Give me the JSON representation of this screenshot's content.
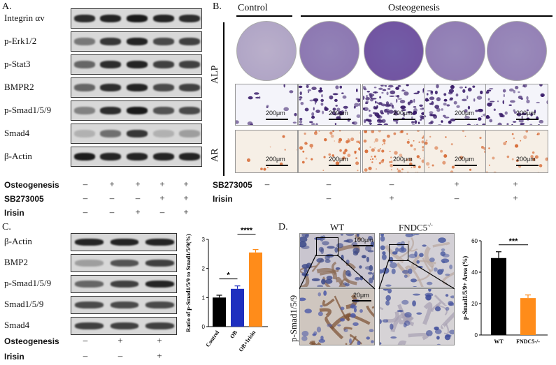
{
  "panelA": {
    "letter": "A.",
    "blots": [
      "Integrin αv",
      "p-Erk1/2",
      "p-Stat3",
      "BMPR2",
      "p-Smad1/5/9",
      "Smad4",
      "β-Actin"
    ],
    "band_intensity": [
      [
        0.9,
        0.95,
        1,
        0.95,
        0.9
      ],
      [
        0.5,
        0.85,
        0.95,
        0.75,
        0.8
      ],
      [
        0.6,
        0.9,
        0.95,
        0.8,
        0.8
      ],
      [
        0.6,
        0.9,
        0.95,
        0.75,
        0.8
      ],
      [
        0.45,
        0.9,
        1,
        0.7,
        0.75
      ],
      [
        0.2,
        0.55,
        0.85,
        0.2,
        0.3
      ],
      [
        1,
        0.95,
        0.95,
        0.95,
        0.95
      ]
    ],
    "conditions": [
      {
        "label": "Osteogenesis",
        "signs": [
          "–",
          "+",
          "+",
          "+",
          "+"
        ]
      },
      {
        "label": "SB273005",
        "signs": [
          "–",
          "–",
          "–",
          "+",
          "+"
        ]
      },
      {
        "label": "Irisin",
        "signs": [
          "–",
          "–",
          "+",
          "–",
          "+"
        ]
      }
    ]
  },
  "panelB": {
    "letter": "B.",
    "header_control": "Control",
    "header_osteo": "Osteogenesis",
    "row_alp": "ALP",
    "row_ar": "AR",
    "scale_label": "200μm",
    "alp_density": [
      0.05,
      0.55,
      0.95,
      0.5,
      0.45
    ],
    "ar_density": [
      0.05,
      0.5,
      0.8,
      0.2,
      0.25
    ],
    "conditions": [
      {
        "label": "SB273005",
        "signs": [
          "–",
          "–",
          "–",
          "+",
          "+"
        ]
      },
      {
        "label": "Irisin",
        "signs": [
          "",
          "–",
          "+",
          "–",
          "+"
        ]
      }
    ]
  },
  "panelC": {
    "letter": "C.",
    "blots": [
      "β-Actin",
      "BMP2",
      "p-Smad1/5/9",
      "Smad1/5/9",
      "Smad4"
    ],
    "band_intensity": [
      [
        0.95,
        0.95,
        0.95
      ],
      [
        0.3,
        0.7,
        0.8
      ],
      [
        0.6,
        0.8,
        0.95
      ],
      [
        0.75,
        0.75,
        0.75
      ],
      [
        0.8,
        0.8,
        0.8
      ]
    ],
    "conditions": [
      {
        "label": "Osteogenesis",
        "signs": [
          "–",
          "+",
          "+"
        ]
      },
      {
        "label": "Irisin",
        "signs": [
          "–",
          "–",
          "+"
        ]
      }
    ]
  },
  "chartC": {
    "chart_data": {
      "type": "bar",
      "categories": [
        "Control",
        "OB",
        "OB+Irisin"
      ],
      "values": [
        1.0,
        1.3,
        2.55
      ],
      "errors": [
        0.08,
        0.1,
        0.1
      ],
      "colors": [
        "#000000",
        "#1f2fbf",
        "#ff8c1a"
      ],
      "ylabel": "Ratio of p-Smad1/5/9 to Smad1/5/9(%)",
      "ylim": [
        0,
        3
      ],
      "yticks": [
        0,
        1,
        2,
        3
      ],
      "significance": [
        {
          "from": 0,
          "to": 1,
          "label": "*"
        },
        {
          "from": 1,
          "to": 2,
          "label": "****"
        }
      ]
    }
  },
  "panelD": {
    "letter": "D.",
    "col_wt": "WT",
    "col_ko": "FNDC5",
    "col_ko_sup": "-/-",
    "row_label": "p-Smad1/5/9",
    "scale_top": "100μm",
    "scale_bottom": "20μm"
  },
  "chartD": {
    "chart_data": {
      "type": "bar",
      "categories": [
        "WT",
        "FNDC5-/-"
      ],
      "values": [
        49,
        23.5
      ],
      "errors": [
        4,
        2
      ],
      "colors": [
        "#000000",
        "#ff8c1a"
      ],
      "ylabel": "p-Smad1/5/9+ Area (%)",
      "ylim": [
        0,
        60
      ],
      "yticks": [
        0,
        20,
        40,
        60
      ],
      "significance": [
        {
          "from": 0,
          "to": 1,
          "label": "***"
        }
      ]
    }
  }
}
